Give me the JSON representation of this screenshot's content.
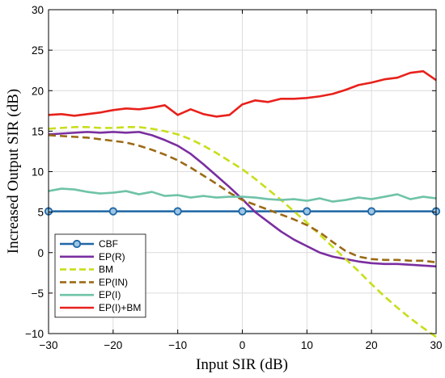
{
  "chart_data": {
    "type": "line",
    "title": "",
    "xlabel": "Input SIR (dB)",
    "ylabel": "Increased Output SIR (dB)",
    "xlim": [
      -30,
      30
    ],
    "ylim": [
      -10,
      30
    ],
    "xticks": [
      -30,
      -20,
      -10,
      0,
      10,
      20,
      30
    ],
    "yticks": [
      -10,
      -5,
      0,
      5,
      10,
      15,
      20,
      25,
      30
    ],
    "grid": true,
    "legend_position": "bottom-left",
    "series": [
      {
        "name": "CBF",
        "color": "#1f67a6",
        "dash": "solid",
        "marker": "circle",
        "x": [
          -30,
          -20,
          -10,
          0,
          10,
          20,
          30
        ],
        "y": [
          5.1,
          5.1,
          5.1,
          5.1,
          5.1,
          5.1,
          5.1
        ]
      },
      {
        "name": "EP(R)",
        "color": "#7a2ea0",
        "dash": "solid",
        "marker": "none",
        "x": [
          -30,
          -28,
          -26,
          -24,
          -22,
          -20,
          -18,
          -16,
          -14,
          -12,
          -10,
          -8,
          -6,
          -4,
          -2,
          0,
          2,
          4,
          6,
          8,
          10,
          12,
          14,
          16,
          18,
          20,
          22,
          24,
          26,
          28,
          30
        ],
        "y": [
          14.6,
          14.7,
          14.8,
          14.9,
          14.8,
          14.9,
          14.8,
          14.9,
          14.5,
          13.9,
          13.2,
          12.2,
          10.9,
          9.5,
          8.1,
          6.6,
          5.0,
          3.8,
          2.6,
          1.6,
          0.8,
          0.0,
          -0.5,
          -0.8,
          -1.1,
          -1.3,
          -1.4,
          -1.4,
          -1.5,
          -1.6,
          -1.7
        ]
      },
      {
        "name": "BM",
        "color": "#c8de1a",
        "dash": "dash",
        "marker": "none",
        "x": [
          -30,
          -28,
          -26,
          -24,
          -22,
          -20,
          -18,
          -16,
          -14,
          -12,
          -10,
          -8,
          -6,
          -4,
          -2,
          0,
          2,
          4,
          6,
          8,
          10,
          12,
          14,
          16,
          18,
          20,
          22,
          24,
          26,
          28,
          30
        ],
        "y": [
          15.3,
          15.4,
          15.5,
          15.5,
          15.4,
          15.4,
          15.5,
          15.5,
          15.3,
          15.0,
          14.6,
          14.0,
          13.2,
          12.3,
          11.3,
          10.3,
          9.1,
          7.8,
          6.5,
          5.1,
          3.7,
          2.2,
          0.7,
          -0.8,
          -2.3,
          -3.9,
          -5.4,
          -6.8,
          -8.1,
          -9.3,
          -10.4
        ]
      },
      {
        "name": "EP(IN)",
        "color": "#9b6a16",
        "dash": "dash",
        "marker": "none",
        "x": [
          -30,
          -28,
          -26,
          -24,
          -22,
          -20,
          -18,
          -16,
          -14,
          -12,
          -10,
          -8,
          -6,
          -4,
          -2,
          0,
          2,
          4,
          6,
          8,
          10,
          12,
          14,
          16,
          18,
          20,
          22,
          24,
          26,
          28,
          30
        ],
        "y": [
          14.5,
          14.4,
          14.3,
          14.2,
          14.0,
          13.8,
          13.6,
          13.2,
          12.7,
          12.1,
          11.4,
          10.5,
          9.5,
          8.5,
          7.4,
          6.5,
          5.9,
          5.3,
          4.7,
          4.1,
          3.4,
          2.5,
          1.3,
          0.2,
          -0.5,
          -0.8,
          -0.9,
          -0.9,
          -1.0,
          -1.0,
          -1.2
        ]
      },
      {
        "name": "EP(I)",
        "color": "#6fc3a8",
        "dash": "solid",
        "marker": "none",
        "x": [
          -30,
          -28,
          -26,
          -24,
          -22,
          -20,
          -18,
          -16,
          -14,
          -12,
          -10,
          -8,
          -6,
          -4,
          -2,
          0,
          2,
          4,
          6,
          8,
          10,
          12,
          14,
          16,
          18,
          20,
          22,
          24,
          26,
          28,
          30
        ],
        "y": [
          7.6,
          7.9,
          7.8,
          7.5,
          7.3,
          7.4,
          7.6,
          7.2,
          7.5,
          7.0,
          7.1,
          6.8,
          7.0,
          6.8,
          6.9,
          6.9,
          6.8,
          6.6,
          6.5,
          6.6,
          6.4,
          6.7,
          6.3,
          6.5,
          6.8,
          6.6,
          6.9,
          7.2,
          6.6,
          6.9,
          6.7
        ]
      },
      {
        "name": "EP(I)+BM",
        "color": "#e8211b",
        "dash": "solid",
        "marker": "none",
        "x": [
          -30,
          -28,
          -26,
          -24,
          -22,
          -20,
          -18,
          -16,
          -14,
          -12,
          -10,
          -8,
          -6,
          -4,
          -2,
          0,
          2,
          4,
          6,
          8,
          10,
          12,
          14,
          16,
          18,
          20,
          22,
          24,
          26,
          28,
          30
        ],
        "y": [
          17.0,
          17.1,
          16.9,
          17.1,
          17.3,
          17.6,
          17.8,
          17.7,
          17.9,
          18.2,
          17.0,
          17.7,
          17.1,
          16.8,
          17.0,
          18.3,
          18.8,
          18.6,
          19.0,
          19.0,
          19.1,
          19.3,
          19.6,
          20.1,
          20.7,
          21.0,
          21.4,
          21.6,
          22.2,
          22.4,
          21.3
        ]
      }
    ]
  }
}
